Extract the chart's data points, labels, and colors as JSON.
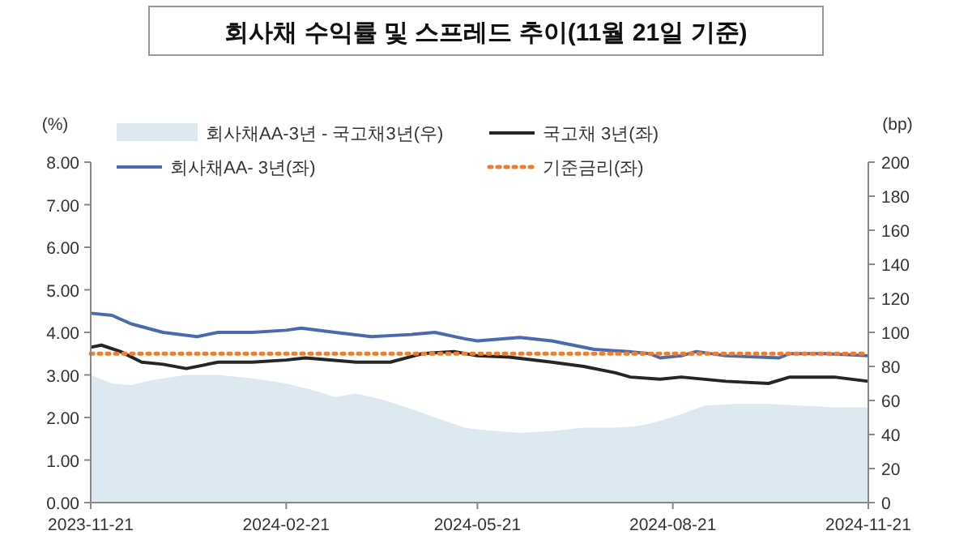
{
  "chart_data": {
    "type": "line",
    "title": "회사채 수익률 및 스프레드 추이(11월 21일 기준)",
    "ylabel": "(%)",
    "y2label": "(bp)",
    "legend": "top",
    "xlim": [
      "2023-11-21",
      "2024-11-21"
    ],
    "xticks": [
      "2023-11-21",
      "2024-02-21",
      "2024-05-21",
      "2024-08-21",
      "2024-11-21"
    ],
    "ylim": [
      0,
      8
    ],
    "yticks": [
      {
        "value": 0,
        "label": "0.00"
      },
      {
        "value": 1,
        "label": "1.00"
      },
      {
        "value": 2,
        "label": "2.00"
      },
      {
        "value": 3,
        "label": "3.00"
      },
      {
        "value": 4,
        "label": "4.00"
      },
      {
        "value": 5,
        "label": "5.00"
      },
      {
        "value": 6,
        "label": "6.00"
      },
      {
        "value": 7,
        "label": "7.00"
      },
      {
        "value": 8,
        "label": "8.00"
      }
    ],
    "y2lim": [
      0,
      200
    ],
    "y2ticks": [
      0,
      20,
      40,
      60,
      80,
      100,
      120,
      140,
      160,
      180,
      200
    ],
    "series": [
      {
        "name": "회사채AA-3년 - 국고채3년(우)",
        "type": "area",
        "axis": "y2",
        "color": "#dde9f1",
        "x": [
          "2023-11-21",
          "2023-12-01",
          "2023-12-10",
          "2023-12-20",
          "2024-01-05",
          "2024-01-20",
          "2024-02-05",
          "2024-02-21",
          "2024-03-05",
          "2024-03-15",
          "2024-03-25",
          "2024-04-05",
          "2024-04-20",
          "2024-05-01",
          "2024-05-15",
          "2024-05-21",
          "2024-06-10",
          "2024-06-25",
          "2024-07-10",
          "2024-07-25",
          "2024-08-05",
          "2024-08-15",
          "2024-08-25",
          "2024-09-05",
          "2024-09-20",
          "2024-10-05",
          "2024-10-20",
          "2024-11-05",
          "2024-11-21"
        ],
        "values": [
          75,
          70,
          69,
          72,
          75,
          75,
          73,
          70,
          66,
          62,
          64,
          61,
          55,
          50,
          44,
          43,
          41,
          42,
          44,
          44,
          45,
          48,
          52,
          57,
          58,
          58,
          57,
          56,
          56
        ]
      },
      {
        "name": "국고채 3년(좌)",
        "type": "line",
        "axis": "y",
        "color": "#262626",
        "x": [
          "2023-11-21",
          "2023-11-26",
          "2023-12-05",
          "2023-12-15",
          "2023-12-25",
          "2024-01-05",
          "2024-01-20",
          "2024-02-05",
          "2024-02-21",
          "2024-03-01",
          "2024-03-25",
          "2024-04-10",
          "2024-04-25",
          "2024-05-10",
          "2024-05-21",
          "2024-06-05",
          "2024-06-25",
          "2024-07-10",
          "2024-07-25",
          "2024-08-01",
          "2024-08-15",
          "2024-08-25",
          "2024-09-15",
          "2024-10-05",
          "2024-10-15",
          "2024-11-05",
          "2024-11-21"
        ],
        "values": [
          3.65,
          3.7,
          3.55,
          3.3,
          3.25,
          3.15,
          3.3,
          3.3,
          3.35,
          3.4,
          3.3,
          3.3,
          3.5,
          3.55,
          3.45,
          3.42,
          3.3,
          3.2,
          3.05,
          2.95,
          2.9,
          2.95,
          2.85,
          2.8,
          2.95,
          2.95,
          2.85
        ]
      },
      {
        "name": "회사채AA- 3년(좌)",
        "type": "line",
        "axis": "y",
        "color": "#4a6aaf",
        "x": [
          "2023-11-21",
          "2023-12-01",
          "2023-12-10",
          "2023-12-25",
          "2024-01-10",
          "2024-01-20",
          "2024-02-05",
          "2024-02-21",
          "2024-02-28",
          "2024-03-15",
          "2024-04-01",
          "2024-04-20",
          "2024-05-01",
          "2024-05-15",
          "2024-05-21",
          "2024-06-10",
          "2024-06-25",
          "2024-07-15",
          "2024-07-31",
          "2024-08-10",
          "2024-08-15",
          "2024-08-25",
          "2024-09-01",
          "2024-09-15",
          "2024-10-10",
          "2024-10-15",
          "2024-11-01",
          "2024-11-21"
        ],
        "values": [
          4.45,
          4.4,
          4.2,
          4.0,
          3.9,
          4.0,
          4.0,
          4.05,
          4.1,
          4.0,
          3.9,
          3.95,
          4.0,
          3.85,
          3.8,
          3.88,
          3.8,
          3.6,
          3.55,
          3.5,
          3.4,
          3.45,
          3.55,
          3.45,
          3.4,
          3.5,
          3.5,
          3.45
        ]
      },
      {
        "name": "기준금리(좌)",
        "type": "line",
        "axis": "y",
        "color": "#ed7d31",
        "line_style": "dotted",
        "x": [
          "2023-11-21",
          "2024-11-21"
        ],
        "values": [
          3.5,
          3.5
        ]
      }
    ]
  }
}
